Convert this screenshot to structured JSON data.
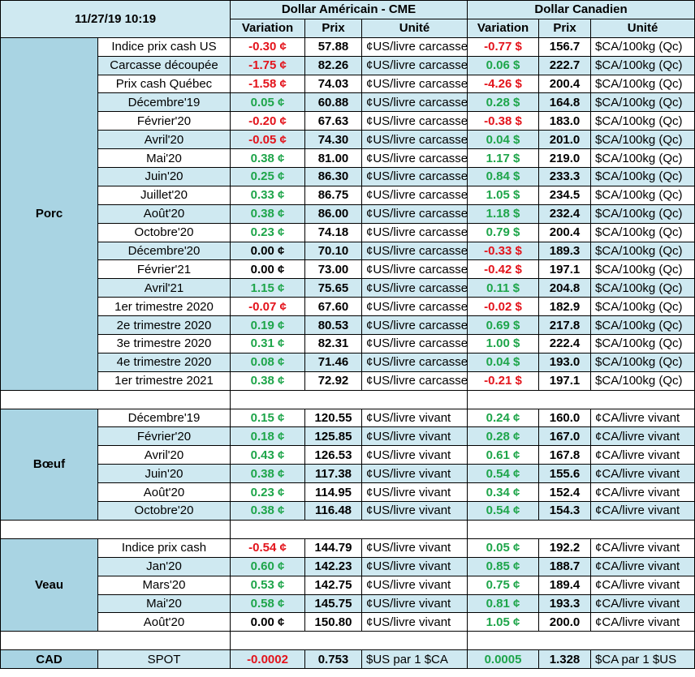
{
  "header": {
    "datetime": "11/27/19 10:19",
    "usd_group": "Dollar Américain - CME",
    "cad_group": "Dollar Canadien",
    "col_variation": "Variation",
    "col_prix": "Prix",
    "col_unite": "Unité"
  },
  "colors": {
    "header_bg": "#cfe9f1",
    "category_bg": "#a9d4e3",
    "positive": "#1ea54a",
    "negative": "#e3131b"
  },
  "sections": {
    "porc": {
      "name": "Porc",
      "rows": [
        {
          "label": "Indice prix cash US",
          "usd_var": "-0.30 ¢",
          "usd_price": "57.88",
          "usd_unit": "¢US/livre carcasse",
          "cad_var": "-0.77 $",
          "cad_price": "156.7",
          "cad_unit": "$CA/100kg (Qc)"
        },
        {
          "label": "Carcasse découpée",
          "usd_var": "-1.75 ¢",
          "usd_price": "82.26",
          "usd_unit": "¢US/livre carcasse",
          "cad_var": "0.06 $",
          "cad_price": "222.7",
          "cad_unit": "$CA/100kg (Qc)"
        },
        {
          "label": "Prix cash Québec",
          "usd_var": "-1.58 ¢",
          "usd_price": "74.03",
          "usd_unit": "¢US/livre carcasse",
          "cad_var": "-4.26 $",
          "cad_price": "200.4",
          "cad_unit": "$CA/100kg (Qc)"
        },
        {
          "label": "Décembre'19",
          "usd_var": "0.05 ¢",
          "usd_price": "60.88",
          "usd_unit": "¢US/livre carcasse",
          "cad_var": "0.28 $",
          "cad_price": "164.8",
          "cad_unit": "$CA/100kg (Qc)"
        },
        {
          "label": "Février'20",
          "usd_var": "-0.20 ¢",
          "usd_price": "67.63",
          "usd_unit": "¢US/livre carcasse",
          "cad_var": "-0.38 $",
          "cad_price": "183.0",
          "cad_unit": "$CA/100kg (Qc)"
        },
        {
          "label": "Avril'20",
          "usd_var": "-0.05 ¢",
          "usd_price": "74.30",
          "usd_unit": "¢US/livre carcasse",
          "cad_var": "0.04 $",
          "cad_price": "201.0",
          "cad_unit": "$CA/100kg (Qc)"
        },
        {
          "label": "Mai'20",
          "usd_var": "0.38 ¢",
          "usd_price": "81.00",
          "usd_unit": "¢US/livre carcasse",
          "cad_var": "1.17 $",
          "cad_price": "219.0",
          "cad_unit": "$CA/100kg (Qc)"
        },
        {
          "label": "Juin'20",
          "usd_var": "0.25 ¢",
          "usd_price": "86.30",
          "usd_unit": "¢US/livre carcasse",
          "cad_var": "0.84 $",
          "cad_price": "233.3",
          "cad_unit": "$CA/100kg (Qc)"
        },
        {
          "label": "Juillet'20",
          "usd_var": "0.33 ¢",
          "usd_price": "86.75",
          "usd_unit": "¢US/livre carcasse",
          "cad_var": "1.05 $",
          "cad_price": "234.5",
          "cad_unit": "$CA/100kg (Qc)"
        },
        {
          "label": "Août'20",
          "usd_var": "0.38 ¢",
          "usd_price": "86.00",
          "usd_unit": "¢US/livre carcasse",
          "cad_var": "1.18 $",
          "cad_price": "232.4",
          "cad_unit": "$CA/100kg (Qc)"
        },
        {
          "label": "Octobre'20",
          "usd_var": "0.23 ¢",
          "usd_price": "74.18",
          "usd_unit": "¢US/livre carcasse",
          "cad_var": "0.79 $",
          "cad_price": "200.4",
          "cad_unit": "$CA/100kg (Qc)"
        },
        {
          "label": "Décembre'20",
          "usd_var": "0.00 ¢",
          "usd_price": "70.10",
          "usd_unit": "¢US/livre carcasse",
          "cad_var": "-0.33 $",
          "cad_price": "189.3",
          "cad_unit": "$CA/100kg (Qc)"
        },
        {
          "label": "Février'21",
          "usd_var": "0.00 ¢",
          "usd_price": "73.00",
          "usd_unit": "¢US/livre carcasse",
          "cad_var": "-0.42 $",
          "cad_price": "197.1",
          "cad_unit": "$CA/100kg (Qc)"
        },
        {
          "label": "Avril'21",
          "usd_var": "1.15 ¢",
          "usd_price": "75.65",
          "usd_unit": "¢US/livre carcasse",
          "cad_var": "0.11 $",
          "cad_price": "204.8",
          "cad_unit": "$CA/100kg (Qc)"
        },
        {
          "label": "1er trimestre 2020",
          "usd_var": "-0.07 ¢",
          "usd_price": "67.60",
          "usd_unit": "¢US/livre carcasse",
          "cad_var": "-0.02 $",
          "cad_price": "182.9",
          "cad_unit": "$CA/100kg (Qc)"
        },
        {
          "label": "2e trimestre 2020",
          "usd_var": "0.19 ¢",
          "usd_price": "80.53",
          "usd_unit": "¢US/livre carcasse",
          "cad_var": "0.69 $",
          "cad_price": "217.8",
          "cad_unit": "$CA/100kg (Qc)"
        },
        {
          "label": "3e trimestre 2020",
          "usd_var": "0.31 ¢",
          "usd_price": "82.31",
          "usd_unit": "¢US/livre carcasse",
          "cad_var": "1.00 $",
          "cad_price": "222.4",
          "cad_unit": "$CA/100kg (Qc)"
        },
        {
          "label": "4e trimestre 2020",
          "usd_var": "0.08 ¢",
          "usd_price": "71.46",
          "usd_unit": "¢US/livre carcasse",
          "cad_var": "0.04 $",
          "cad_price": "193.0",
          "cad_unit": "$CA/100kg (Qc)"
        },
        {
          "label": "1er trimestre 2021",
          "usd_var": "0.38 ¢",
          "usd_price": "72.92",
          "usd_unit": "¢US/livre carcasse",
          "cad_var": "-0.21 $",
          "cad_price": "197.1",
          "cad_unit": "$CA/100kg (Qc)"
        }
      ]
    },
    "boeuf": {
      "name": "Bœuf",
      "rows": [
        {
          "label": "Décembre'19",
          "usd_var": "0.15 ¢",
          "usd_price": "120.55",
          "usd_unit": "¢US/livre vivant",
          "cad_var": "0.24 ¢",
          "cad_price": "160.0",
          "cad_unit": "¢CA/livre vivant"
        },
        {
          "label": "Février'20",
          "usd_var": "0.18 ¢",
          "usd_price": "125.85",
          "usd_unit": "¢US/livre vivant",
          "cad_var": "0.28 ¢",
          "cad_price": "167.0",
          "cad_unit": "¢CA/livre vivant"
        },
        {
          "label": "Avril'20",
          "usd_var": "0.43 ¢",
          "usd_price": "126.53",
          "usd_unit": "¢US/livre vivant",
          "cad_var": "0.61 ¢",
          "cad_price": "167.8",
          "cad_unit": "¢CA/livre vivant"
        },
        {
          "label": "Juin'20",
          "usd_var": "0.38 ¢",
          "usd_price": "117.38",
          "usd_unit": "¢US/livre vivant",
          "cad_var": "0.54 ¢",
          "cad_price": "155.6",
          "cad_unit": "¢CA/livre vivant"
        },
        {
          "label": "Août'20",
          "usd_var": "0.23 ¢",
          "usd_price": "114.95",
          "usd_unit": "¢US/livre vivant",
          "cad_var": "0.34 ¢",
          "cad_price": "152.4",
          "cad_unit": "¢CA/livre vivant"
        },
        {
          "label": "Octobre'20",
          "usd_var": "0.38 ¢",
          "usd_price": "116.48",
          "usd_unit": "¢US/livre vivant",
          "cad_var": "0.54 ¢",
          "cad_price": "154.3",
          "cad_unit": "¢CA/livre vivant"
        }
      ]
    },
    "veau": {
      "name": "Veau",
      "rows": [
        {
          "label": "Indice prix cash",
          "usd_var": "-0.54 ¢",
          "usd_price": "144.79",
          "usd_unit": "¢US/livre vivant",
          "cad_var": "0.05 ¢",
          "cad_price": "192.2",
          "cad_unit": "¢CA/livre vivant"
        },
        {
          "label": "Jan'20",
          "usd_var": "0.60 ¢",
          "usd_price": "142.23",
          "usd_unit": "¢US/livre vivant",
          "cad_var": "0.85 ¢",
          "cad_price": "188.7",
          "cad_unit": "¢CA/livre vivant"
        },
        {
          "label": "Mars'20",
          "usd_var": "0.53 ¢",
          "usd_price": "142.75",
          "usd_unit": "¢US/livre vivant",
          "cad_var": "0.75 ¢",
          "cad_price": "189.4",
          "cad_unit": "¢CA/livre vivant"
        },
        {
          "label": "Mai'20",
          "usd_var": "0.58 ¢",
          "usd_price": "145.75",
          "usd_unit": "¢US/livre vivant",
          "cad_var": "0.81 ¢",
          "cad_price": "193.3",
          "cad_unit": "¢CA/livre vivant"
        },
        {
          "label": "Août'20",
          "usd_var": "0.00 ¢",
          "usd_price": "150.80",
          "usd_unit": "¢US/livre vivant",
          "cad_var": "1.05 ¢",
          "cad_price": "200.0",
          "cad_unit": "¢CA/livre vivant"
        }
      ]
    },
    "cad": {
      "name": "CAD",
      "rows": [
        {
          "label": "SPOT",
          "usd_var": "-0.0002",
          "usd_price": "0.753",
          "usd_unit": "$US par 1 $CA",
          "cad_var": "0.0005",
          "cad_price": "1.328",
          "cad_unit": "$CA par 1 $US"
        }
      ]
    }
  }
}
